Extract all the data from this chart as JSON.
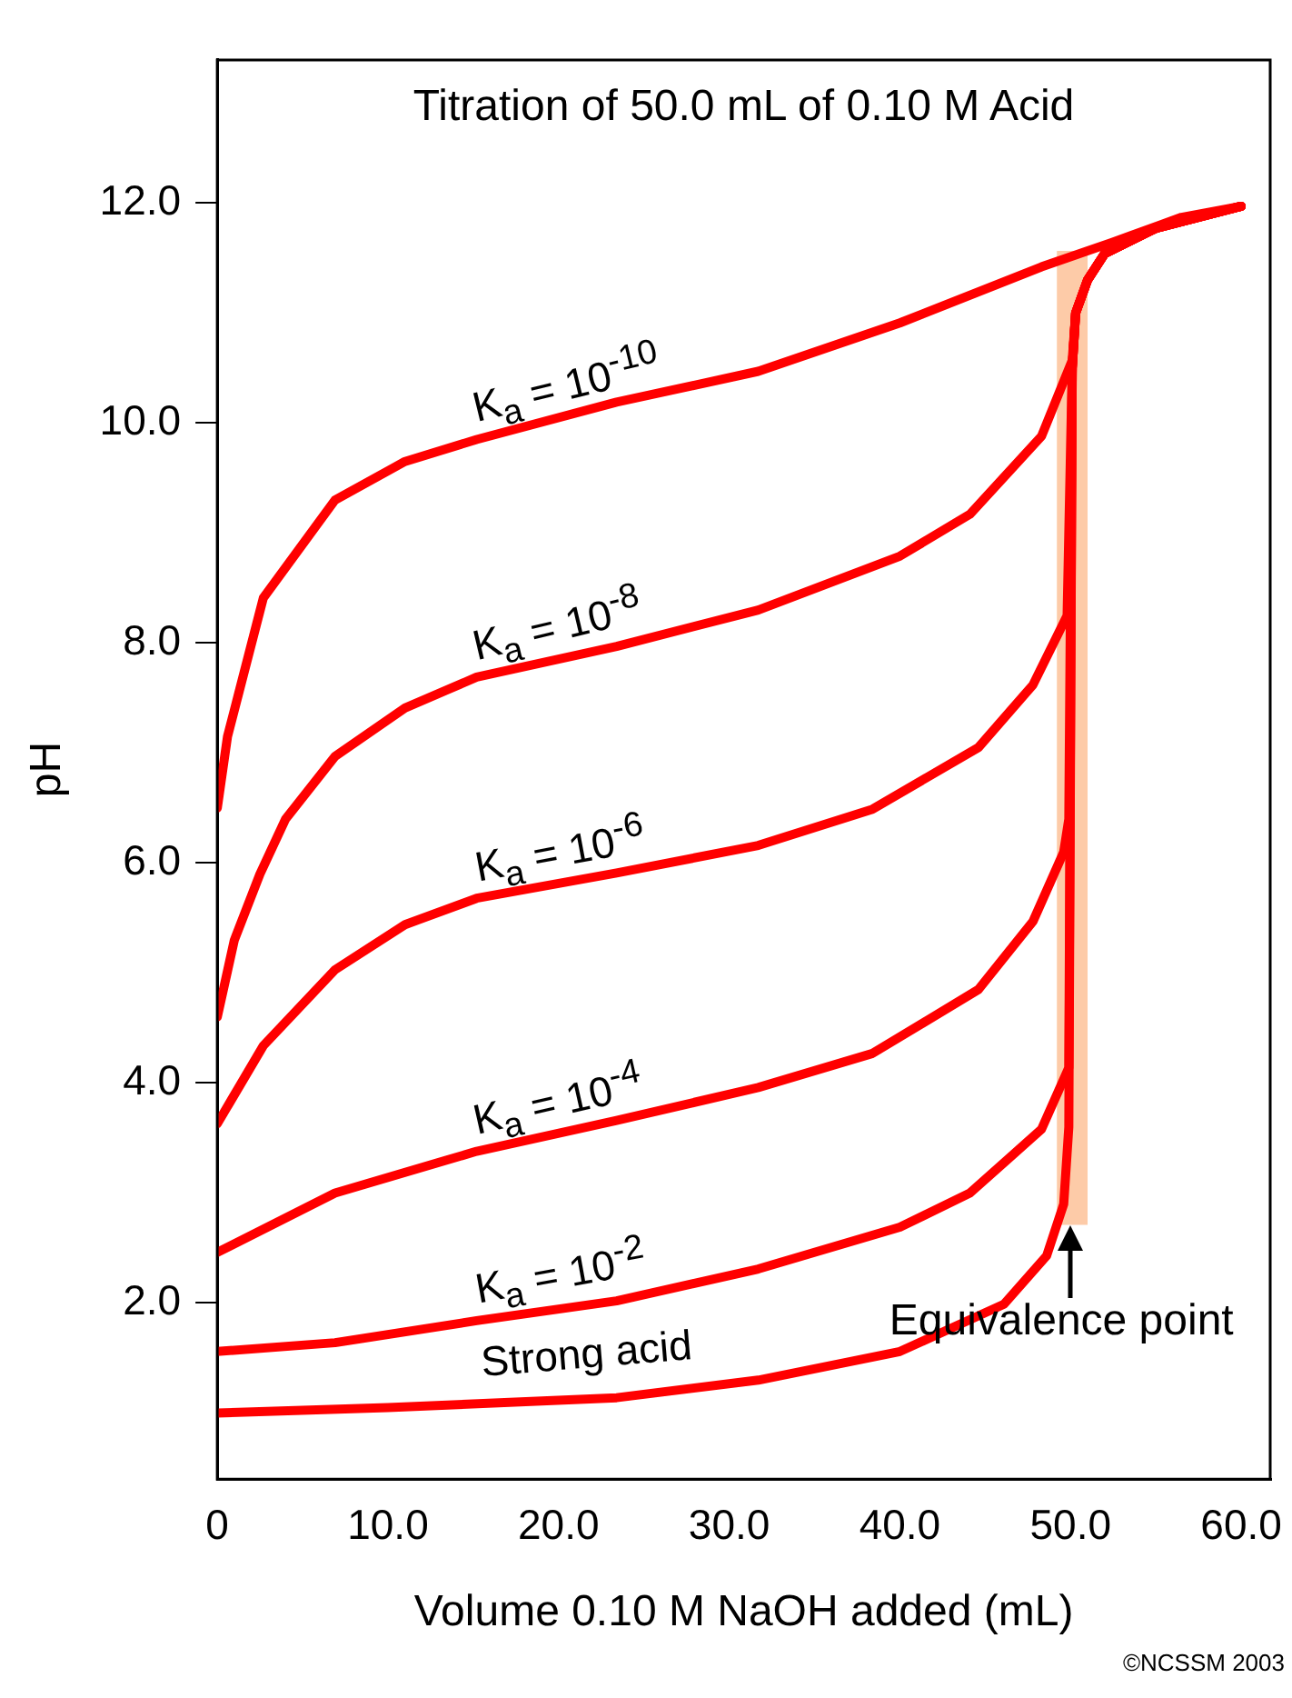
{
  "chart_data": {
    "type": "line",
    "title": "Titration of 50.0 mL of 0.10 M Acid",
    "xlabel": "Volume 0.10 M NaOH added (mL)",
    "ylabel": "pH",
    "xlim": [
      0,
      61.7
    ],
    "ylim": [
      0.4,
      13.3
    ],
    "xticks": [
      {
        "value": 0,
        "label": "0"
      },
      {
        "value": 10,
        "label": "10.0"
      },
      {
        "value": 20,
        "label": "20.0"
      },
      {
        "value": 30,
        "label": "30.0"
      },
      {
        "value": 40,
        "label": "40.0"
      },
      {
        "value": 50,
        "label": "50.0"
      },
      {
        "value": 60,
        "label": "60.0"
      }
    ],
    "yticks": [
      {
        "value": 2,
        "label": "2.0"
      },
      {
        "value": 4,
        "label": "4.0"
      },
      {
        "value": 6,
        "label": "6.0"
      },
      {
        "value": 8,
        "label": "8.0"
      },
      {
        "value": 10,
        "label": "10.0"
      },
      {
        "value": 12,
        "label": "12.0"
      }
    ],
    "grid": false,
    "legend": false,
    "marker": "none",
    "line_style": "solid",
    "series": [
      {
        "name": "Strong acid",
        "color": "#ff0000",
        "x": [
          0,
          10,
          23.4,
          31.7,
          40,
          46.1,
          48.6,
          49.6,
          49.9,
          50.1,
          50.3,
          51,
          52,
          55,
          60
        ],
        "values": [
          1.0,
          1.05,
          1.14,
          1.3,
          1.56,
          1.99,
          2.43,
          2.9,
          3.6,
          10.5,
          11.0,
          11.3,
          11.54,
          11.77,
          11.97
        ]
      },
      {
        "name": "K$_{a}$ = 10$^{-2}$",
        "color": "#ff0000",
        "x": [
          0,
          6.9,
          15.2,
          23.4,
          31.7,
          40,
          44.1,
          48.3,
          49.9,
          50.1,
          50.3,
          51,
          52,
          55,
          60
        ],
        "values": [
          1.56,
          1.64,
          1.84,
          2.02,
          2.31,
          2.69,
          3.0,
          3.58,
          4.14,
          10.5,
          11.0,
          11.3,
          11.54,
          11.77,
          11.97
        ]
      },
      {
        "name": "K$_{a}$ = 10$^{-4}$",
        "color": "#ff0000",
        "x": [
          0,
          6.9,
          15.2,
          23.4,
          31.7,
          38.4,
          44.6,
          47.8,
          49.6,
          49.9,
          50.1,
          50.3,
          51,
          52,
          55,
          60
        ],
        "values": [
          2.46,
          3.0,
          3.38,
          3.66,
          3.96,
          4.27,
          4.85,
          5.47,
          6.1,
          6.4,
          10.5,
          11.0,
          11.3,
          11.54,
          11.77,
          11.97
        ]
      },
      {
        "name": "K$_{a}$ = 10$^{-6}$",
        "color": "#ff0000",
        "x": [
          0,
          2.7,
          6.9,
          11,
          15.2,
          23.4,
          31.7,
          38.4,
          44.6,
          47.8,
          49.8,
          50.1,
          50.3,
          51,
          52,
          55,
          60
        ],
        "values": [
          3.63,
          4.34,
          5.03,
          5.44,
          5.68,
          5.91,
          6.16,
          6.49,
          7.05,
          7.62,
          8.25,
          10.5,
          11.0,
          11.3,
          11.54,
          11.77,
          11.97
        ]
      },
      {
        "name": "K$_{a}$ = 10$^{-8}$",
        "color": "#ff0000",
        "x": [
          0,
          1,
          2.5,
          4,
          6.9,
          11,
          15.2,
          23.4,
          31.7,
          40,
          44.1,
          48.3,
          50.1,
          50.3,
          51,
          52,
          55,
          60
        ],
        "values": [
          4.6,
          5.3,
          5.9,
          6.4,
          6.97,
          7.41,
          7.69,
          7.97,
          8.3,
          8.79,
          9.17,
          9.88,
          10.57,
          11.0,
          11.3,
          11.54,
          11.77,
          11.97
        ]
      },
      {
        "name": "K$_{a}$ = 10$^{-10}$",
        "color": "#ff0000",
        "x": [
          0,
          0.6,
          2.7,
          6.9,
          11,
          15.2,
          23.4,
          31.7,
          40,
          48.3,
          52.4,
          56.5,
          60
        ],
        "values": [
          6.5,
          7.15,
          8.41,
          9.3,
          9.65,
          9.85,
          10.19,
          10.47,
          10.91,
          11.42,
          11.64,
          11.87,
          11.97
        ]
      }
    ],
    "bands": [
      {
        "axis": "x",
        "from": 49.2,
        "to": 51.0,
        "color": "#fdcba8"
      }
    ],
    "annotations": [
      {
        "text": "Equivalence point",
        "x": 50,
        "y": 2.7
      },
      "©NCSSM 2003"
    ]
  }
}
